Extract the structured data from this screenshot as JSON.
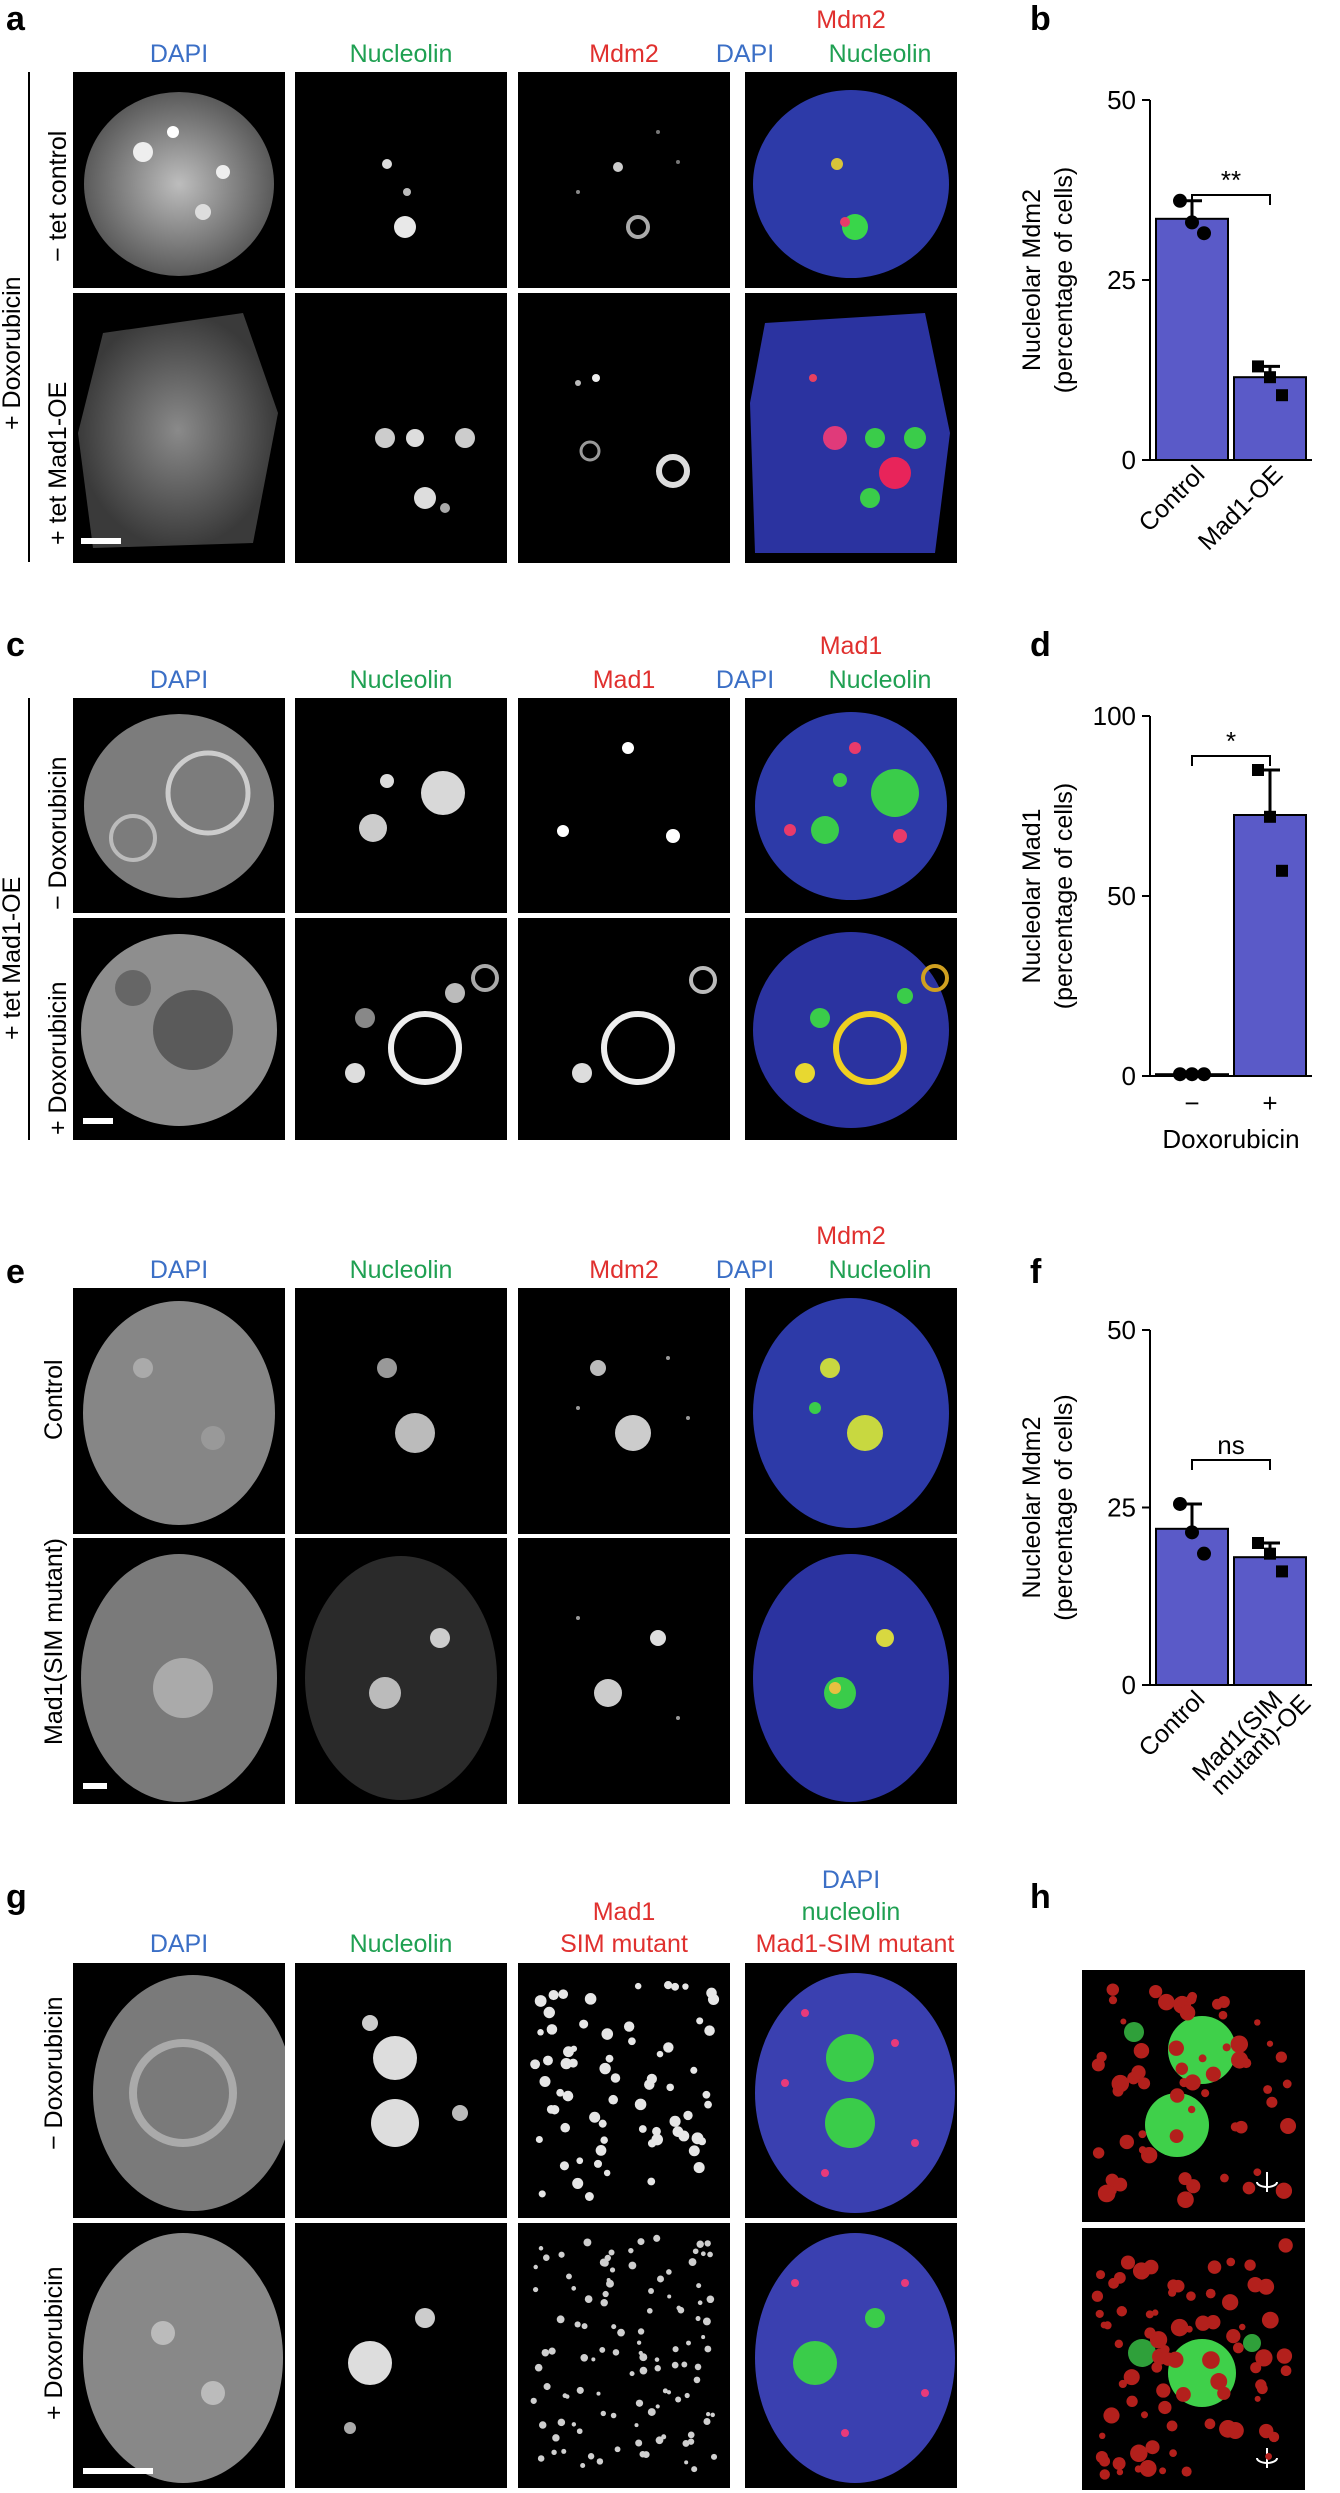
{
  "panels": {
    "a": {
      "letter": "a",
      "columns": [
        "DAPI",
        "Nucleolin",
        "Mdm2",
        "Mdm2",
        "DAPI",
        "Nucleolin"
      ],
      "outer_label": "+ Doxorubicin",
      "rows": [
        "− tet control",
        "+ tet Mad1-OE"
      ]
    },
    "b": {
      "letter": "b"
    },
    "c": {
      "letter": "c",
      "columns": [
        "DAPI",
        "Nucleolin",
        "Mad1",
        "Mad1",
        "DAPI",
        "Nucleolin"
      ],
      "outer_label": "+ tet Mad1-OE",
      "rows": [
        "− Doxorubicin",
        "+ Doxorubicin"
      ]
    },
    "d": {
      "letter": "d"
    },
    "e": {
      "letter": "e",
      "columns": [
        "DAPI",
        "Nucleolin",
        "Mdm2",
        "Mdm2",
        "DAPI",
        "Nucleolin"
      ],
      "rows": [
        "Control",
        "Mad1(SIM mutant)"
      ]
    },
    "f": {
      "letter": "f"
    },
    "g": {
      "letter": "g",
      "columns": [
        "DAPI",
        "Nucleolin",
        "Mad1",
        "SIM mutant",
        "DAPI",
        "nucleolin",
        "Mad1-SIM mutant"
      ],
      "rows": [
        "− Doxorubicin",
        "+ Doxorubicin"
      ]
    },
    "h": {
      "letter": "h"
    }
  },
  "colors": {
    "dapi": "#3b6fc6",
    "nucleolin": "#1fa052",
    "red": "#e0302e",
    "bar": "#5a5ac8"
  },
  "chart_data": [
    {
      "type": "bar",
      "panel": "b",
      "categories": [
        "Control",
        "Mad1-OE"
      ],
      "values": [
        33.5,
        11.5
      ],
      "points": [
        [
          36,
          33,
          31.5
        ],
        [
          13,
          11.5,
          9
        ]
      ],
      "ylabel": "Nucleolar Mdm2\n(percentage of cells)",
      "ylim": [
        0,
        50
      ],
      "yticks": [
        "0",
        "25",
        "50"
      ],
      "significance": "**"
    },
    {
      "type": "bar",
      "panel": "d",
      "categories": [
        "−",
        "+"
      ],
      "values": [
        0.5,
        72.5
      ],
      "points": [
        [
          0.5,
          0.5,
          0.5
        ],
        [
          85,
          72,
          57
        ]
      ],
      "xlabel": "Doxorubicin",
      "ylabel": "Nucleolar Mad1\n(percentage of cells)",
      "ylim": [
        0,
        100
      ],
      "yticks": [
        "0",
        "50",
        "100"
      ],
      "significance": "*"
    },
    {
      "type": "bar",
      "panel": "f",
      "categories": [
        "Control",
        "Mad1(SIM\nmutant)-OE"
      ],
      "values": [
        22,
        18
      ],
      "points": [
        [
          25.5,
          21.5,
          18.5
        ],
        [
          20,
          18.5,
          16
        ]
      ],
      "ylabel": "Nucleolar Mdm2\n(percentage of cells)",
      "ylim": [
        0,
        50
      ],
      "yticks": [
        "0",
        "25",
        "50"
      ],
      "significance": "ns"
    }
  ]
}
